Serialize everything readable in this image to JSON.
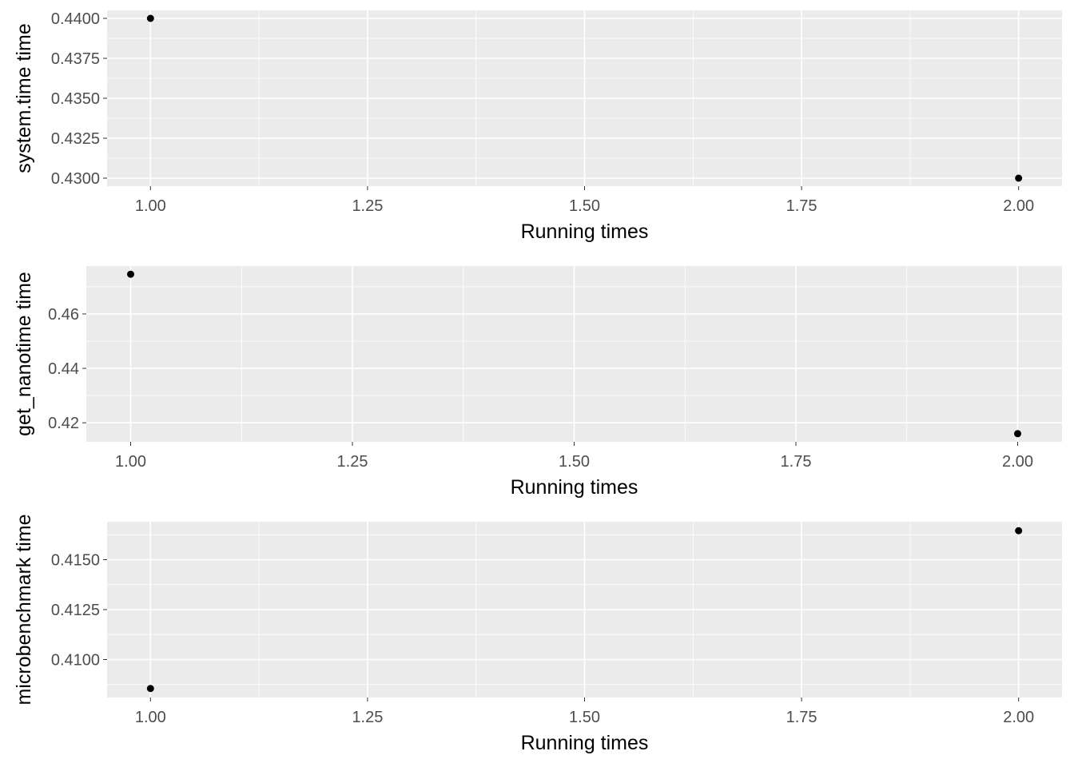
{
  "chart_data": [
    {
      "type": "scatter",
      "xlabel": "Running times",
      "ylabel": "system.time time",
      "xlim": [
        0.95,
        2.05
      ],
      "ylim": [
        0.4295,
        0.4405
      ],
      "x_ticks": [
        "1.00",
        "1.25",
        "1.50",
        "1.75",
        "2.00"
      ],
      "y_ticks": [
        "0.4300",
        "0.4325",
        "0.4350",
        "0.4375",
        "0.4400"
      ],
      "grid": true,
      "points": [
        {
          "x": 1,
          "y": 0.44
        },
        {
          "x": 2,
          "y": 0.43
        }
      ]
    },
    {
      "type": "scatter",
      "xlabel": "Running times",
      "ylabel": "get_nanotime time",
      "xlim": [
        0.95,
        2.05
      ],
      "ylim": [
        0.413,
        0.4776
      ],
      "x_ticks": [
        "1.00",
        "1.25",
        "1.50",
        "1.75",
        "2.00"
      ],
      "y_ticks": [
        "0.42",
        "0.44",
        "0.46"
      ],
      "grid": true,
      "points": [
        {
          "x": 1,
          "y": 0.4746
        },
        {
          "x": 2,
          "y": 0.416
        }
      ]
    },
    {
      "type": "scatter",
      "xlabel": "Running times",
      "ylabel": "microbenchmark time",
      "xlim": [
        0.95,
        2.05
      ],
      "ylim": [
        0.4081,
        0.4169
      ],
      "x_ticks": [
        "1.00",
        "1.25",
        "1.50",
        "1.75",
        "2.00"
      ],
      "y_ticks": [
        "0.4100",
        "0.4125",
        "0.4150"
      ],
      "grid": true,
      "points": [
        {
          "x": 1,
          "y": 0.40855
        },
        {
          "x": 2,
          "y": 0.41645
        }
      ]
    }
  ]
}
